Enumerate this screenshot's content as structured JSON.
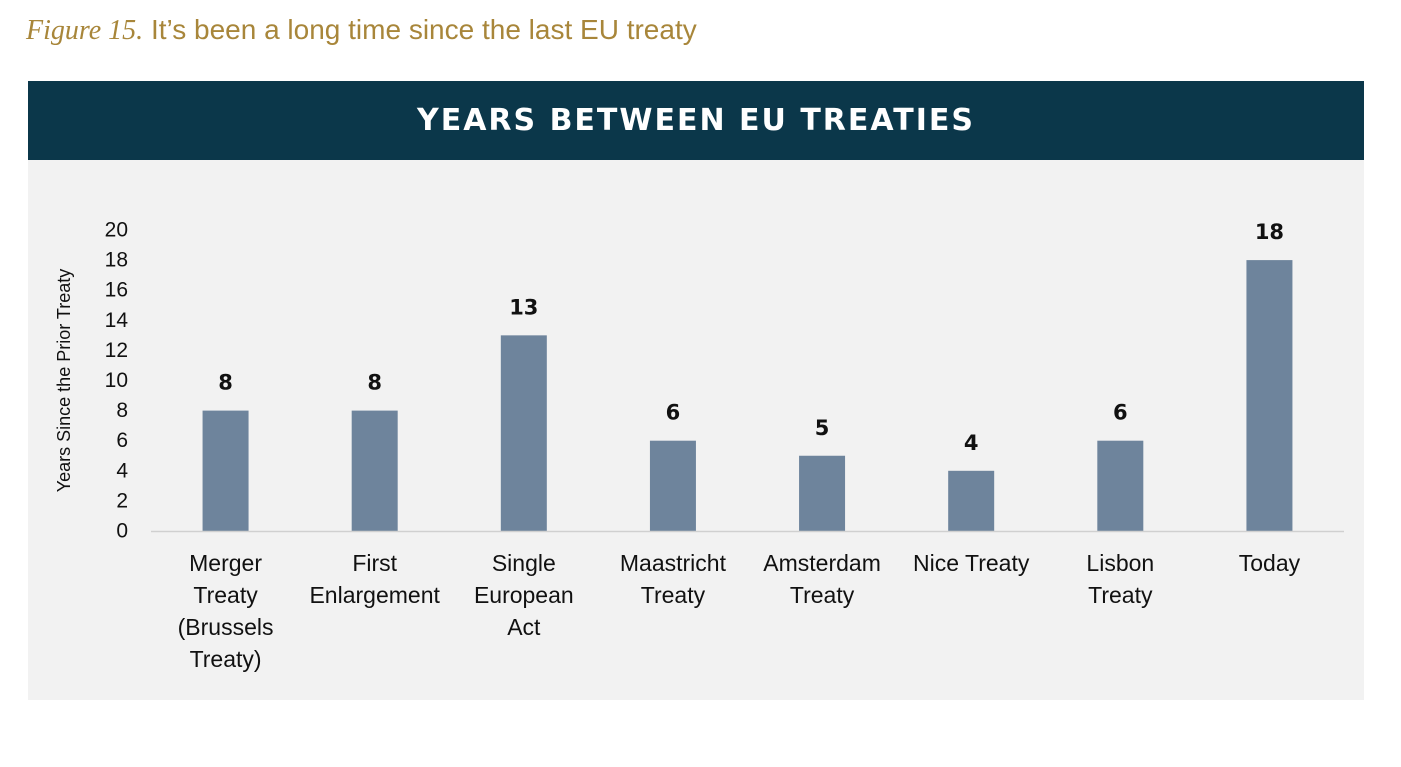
{
  "caption": {
    "figure_label": "Figure 15.",
    "title": "It’s been a long time since the last EU treaty"
  },
  "colors": {
    "caption": "#a8863a",
    "banner": "#0b374a",
    "panel": "#f2f2f2",
    "bar": "#6e849c",
    "axis": "#d0d0d0"
  },
  "chart_data": {
    "type": "bar",
    "title": "YEARS BETWEEN EU TREATIES",
    "xlabel": "",
    "ylabel": "Years Since the Prior Treaty",
    "ylim": [
      0,
      20
    ],
    "yticks": [
      0,
      2,
      4,
      6,
      8,
      10,
      12,
      14,
      16,
      18,
      20
    ],
    "grid": false,
    "data_labels": true,
    "categories": [
      "Merger Treaty (Brussels Treaty)",
      "First Enlargement",
      "Single European Act",
      "Maastricht Treaty",
      "Amsterdam Treaty",
      "Nice Treaty",
      "Lisbon Treaty",
      "Today"
    ],
    "category_lines": [
      [
        "Merger",
        "Treaty",
        "(Brussels",
        "Treaty)"
      ],
      [
        "First",
        "Enlargement"
      ],
      [
        "Single",
        "European",
        "Act"
      ],
      [
        "Maastricht",
        "Treaty"
      ],
      [
        "Amsterdam",
        "Treaty"
      ],
      [
        "Nice Treaty"
      ],
      [
        "Lisbon",
        "Treaty"
      ],
      [
        "Today"
      ]
    ],
    "values": [
      8,
      8,
      13,
      6,
      5,
      4,
      6,
      18
    ]
  }
}
